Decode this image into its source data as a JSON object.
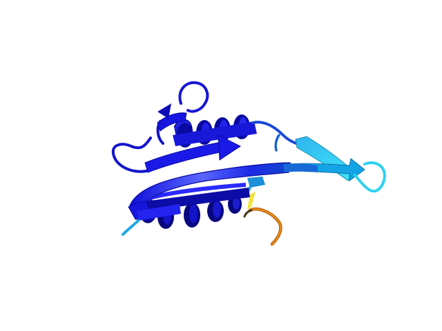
{
  "scene": {
    "background": "#ffffff",
    "subject": "protein-cartoon-ribbon",
    "palette": {
      "deep_blue": "#1a1aff",
      "dark_blue": "#0a0ab4",
      "navy": "#06068c",
      "mid_blue": "#2c3ce0",
      "light_blue": "#4a58ff",
      "sky": "#1ea8e6",
      "cyan": "#37dcf5",
      "teal": "#1898b8",
      "yellow": "#f2e43a",
      "orange": "#e07d10",
      "dark_orange": "#b05c08"
    },
    "elements": [
      "helix-top",
      "helix-bottom",
      "beta-strand-front",
      "beta-strand-top-left",
      "beta-hairpin-right",
      "loop-top",
      "loop-left",
      "loop-orange-tail"
    ]
  }
}
